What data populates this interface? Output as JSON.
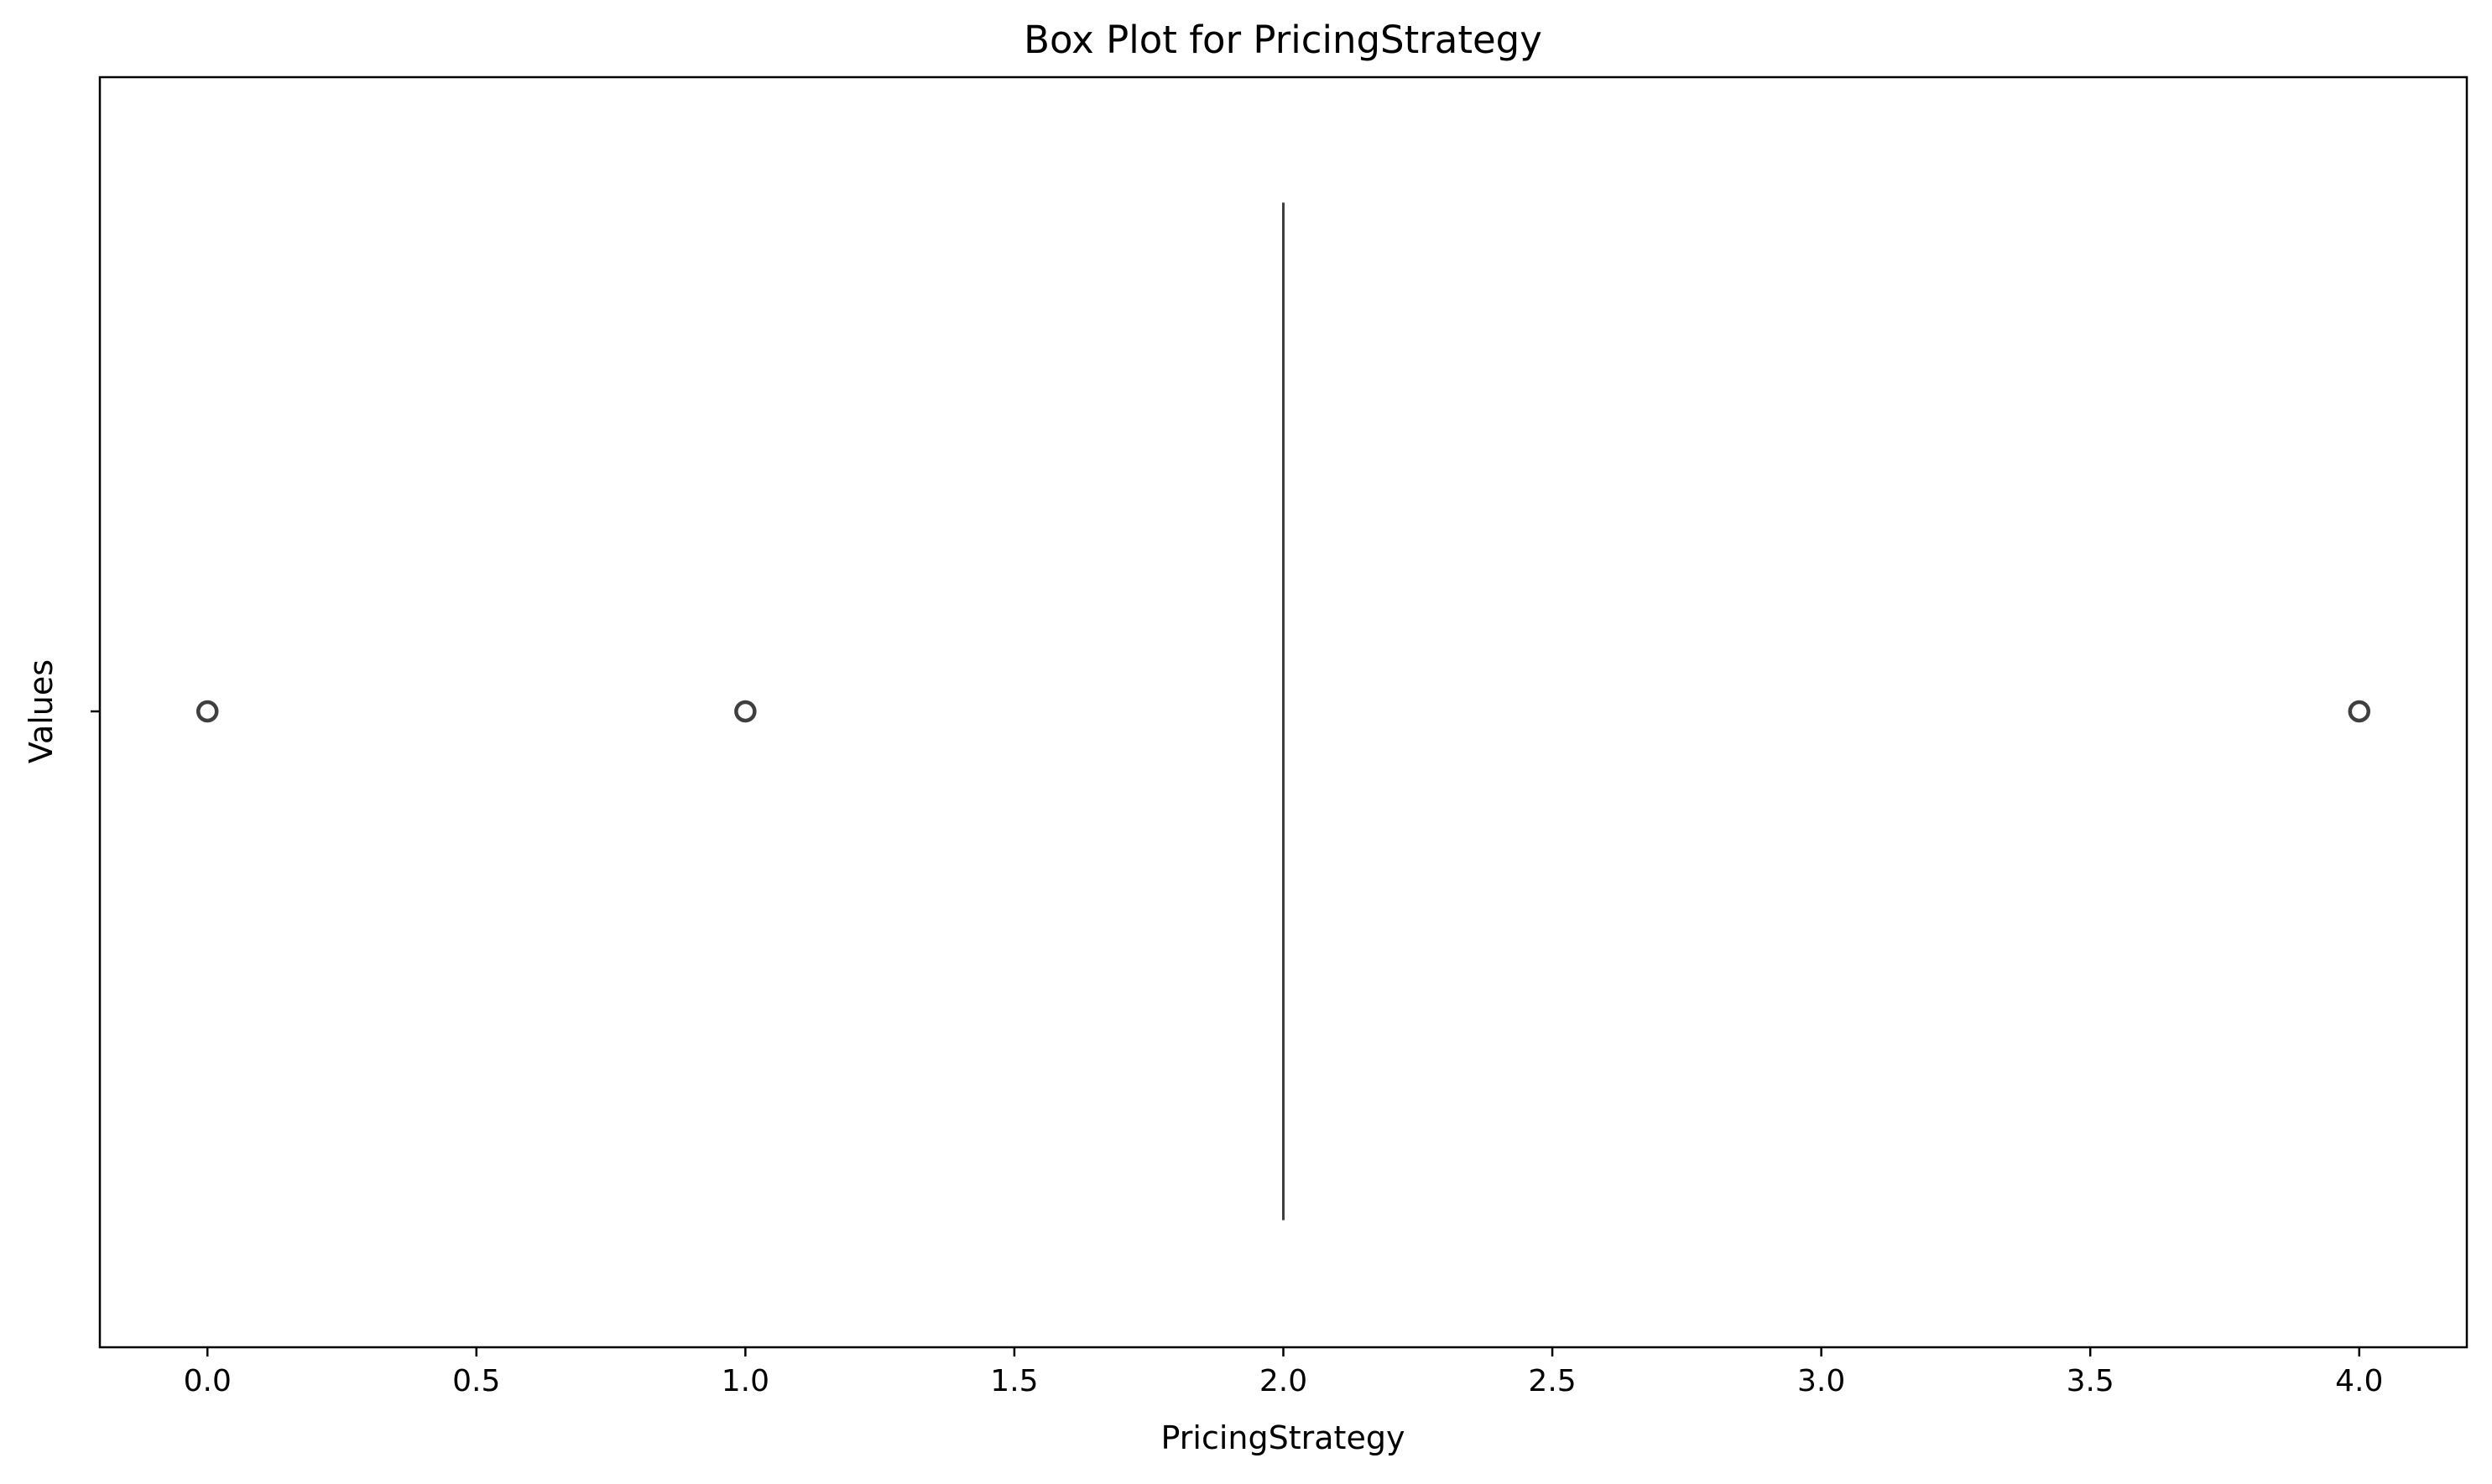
{
  "chart_data": {
    "type": "box",
    "title": "Box Plot for PricingStrategy",
    "xlabel": "PricingStrategy",
    "ylabel": "Values",
    "xlim": [
      -0.2,
      4.2
    ],
    "x_ticks": [
      0.0,
      0.5,
      1.0,
      1.5,
      2.0,
      2.5,
      3.0,
      3.5,
      4.0
    ],
    "x_tick_labels": [
      "0.0",
      "0.5",
      "1.0",
      "1.5",
      "2.0",
      "2.5",
      "3.0",
      "3.5",
      "4.0"
    ],
    "grid": false,
    "box": {
      "q1": 2.0,
      "median": 2.0,
      "q3": 2.0,
      "whisker_low": 2.0,
      "whisker_high": 2.0,
      "outliers": [
        0.0,
        1.0,
        4.0
      ]
    },
    "colors": {
      "box_line": "#3f3f3f",
      "axes": "#000000",
      "background": "#ffffff"
    }
  }
}
